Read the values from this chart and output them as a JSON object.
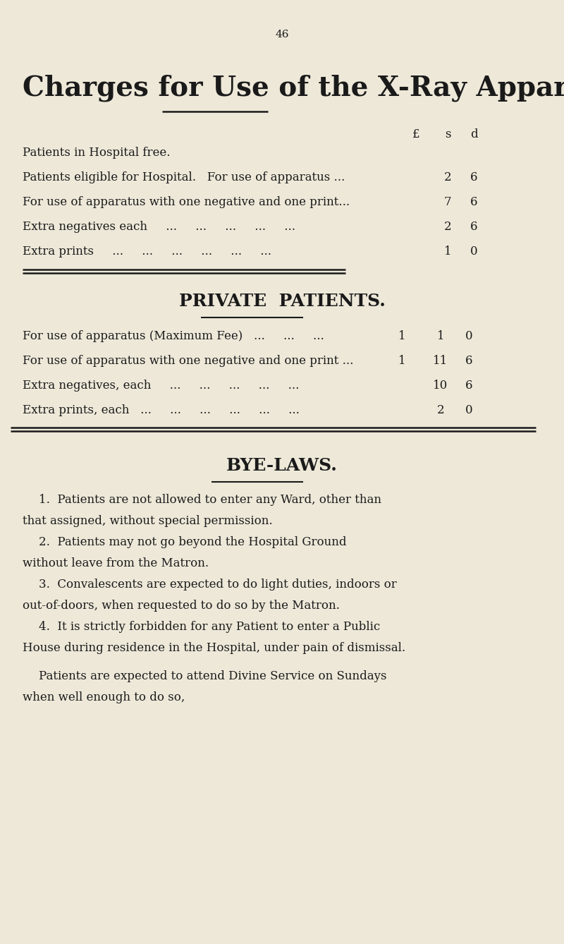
{
  "bg_color": "#ede8d8",
  "text_color": "#1a1a1a",
  "page_number": "46",
  "main_title": "Charges for Use of the X-Ray Apparatus.",
  "currency_header_pound": "£",
  "currency_header_s": "s",
  "currency_header_d": "d",
  "hospital_rows": [
    {
      "text": "Patients in Hospital free.",
      "s": "",
      "d": ""
    },
    {
      "text": "Patients eligible for Hospital.   For use of apparatus ...",
      "s": "2",
      "d": "6"
    },
    {
      "text": "For use of apparatus with one negative and one print...",
      "s": "7",
      "d": "6"
    },
    {
      "text": "Extra negatives each     ...     ...     ...     ...     ...",
      "s": "2",
      "d": "6"
    },
    {
      "text": "Extra prints     ...     ...     ...     ...     ...     ...",
      "s": "1",
      "d": "0"
    }
  ],
  "private_title": "PRIVATE  PATIENTS.",
  "private_rows": [
    {
      "text": "For use of apparatus (Maximum Fee)   ...     ...     ...",
      "pounds": "1",
      "s": "1",
      "d": "0"
    },
    {
      "text": "For use of apparatus with one negative and one print ...",
      "pounds": "1",
      "s": "11",
      "d": "6"
    },
    {
      "text": "Extra negatives, each     ...     ...     ...     ...     ...",
      "pounds": "",
      "s": "10",
      "d": "6"
    },
    {
      "text": "Extra prints, each   ...     ...     ...     ...     ...     ...",
      "pounds": "",
      "s": "2",
      "d": "0"
    }
  ],
  "byelaws_title": "BYE-LAWS.",
  "byelaws": [
    {
      "indent": true,
      "lines": [
        "1.  Patients are not allowed to enter any Ward, other than",
        "that assigned, without special permission."
      ]
    },
    {
      "indent": true,
      "lines": [
        "2.  Patients may not go beyond the Hospital Ground",
        "without leave from the Matron."
      ]
    },
    {
      "indent": true,
      "lines": [
        "3.  Convalescents are expected to do light duties, indoors or",
        "out-of-doors, when requested to do so by the Matron."
      ]
    },
    {
      "indent": true,
      "lines": [
        "4.  It is strictly forbidden for any Patient to enter a Public",
        "House during residence in the Hospital, under pain of dismissal."
      ]
    },
    {
      "indent": false,
      "lines": [
        "Patients are expected to attend Divine Service on Sundays",
        "when well enough to do so,"
      ]
    }
  ]
}
